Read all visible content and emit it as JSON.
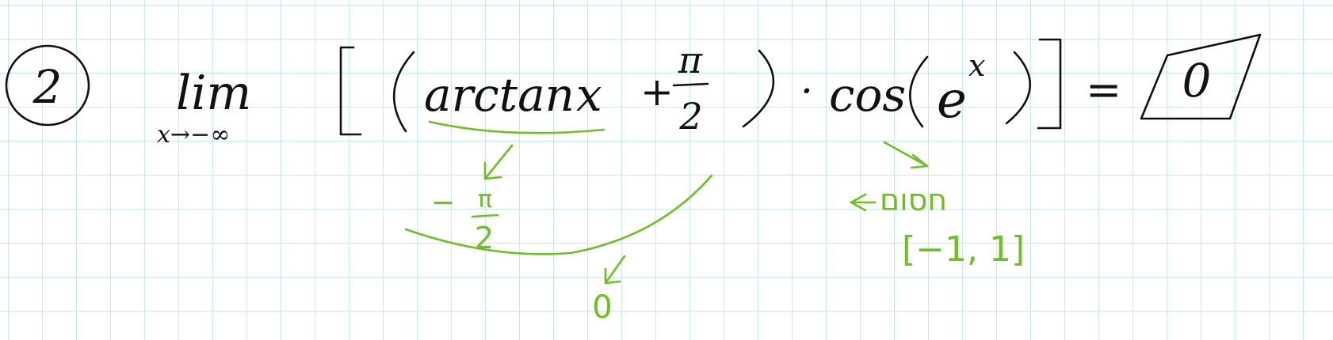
{
  "problem": {
    "number": "2",
    "limit_word": "lim",
    "limit_subscript": "x→−∞",
    "arctan_text": "arctan",
    "variable_x": "x",
    "plus_sign": "+",
    "pi_symbol": "π",
    "denominator_2": "2",
    "dot_operator": "·",
    "cos_text": "cos",
    "e_base": "e",
    "exponent_x": "x",
    "equals_sign": "=",
    "boxed_answer": "0"
  },
  "annotations": {
    "minus_sign": "−",
    "pi_symbol": "π",
    "denominator_2": "2",
    "product_result": "0",
    "bounded_word": "חסום",
    "interval": "[−1, 1]"
  },
  "colors": {
    "ink": "#111111",
    "annotation": "#6cc022",
    "grid": "#c9e6f4"
  }
}
